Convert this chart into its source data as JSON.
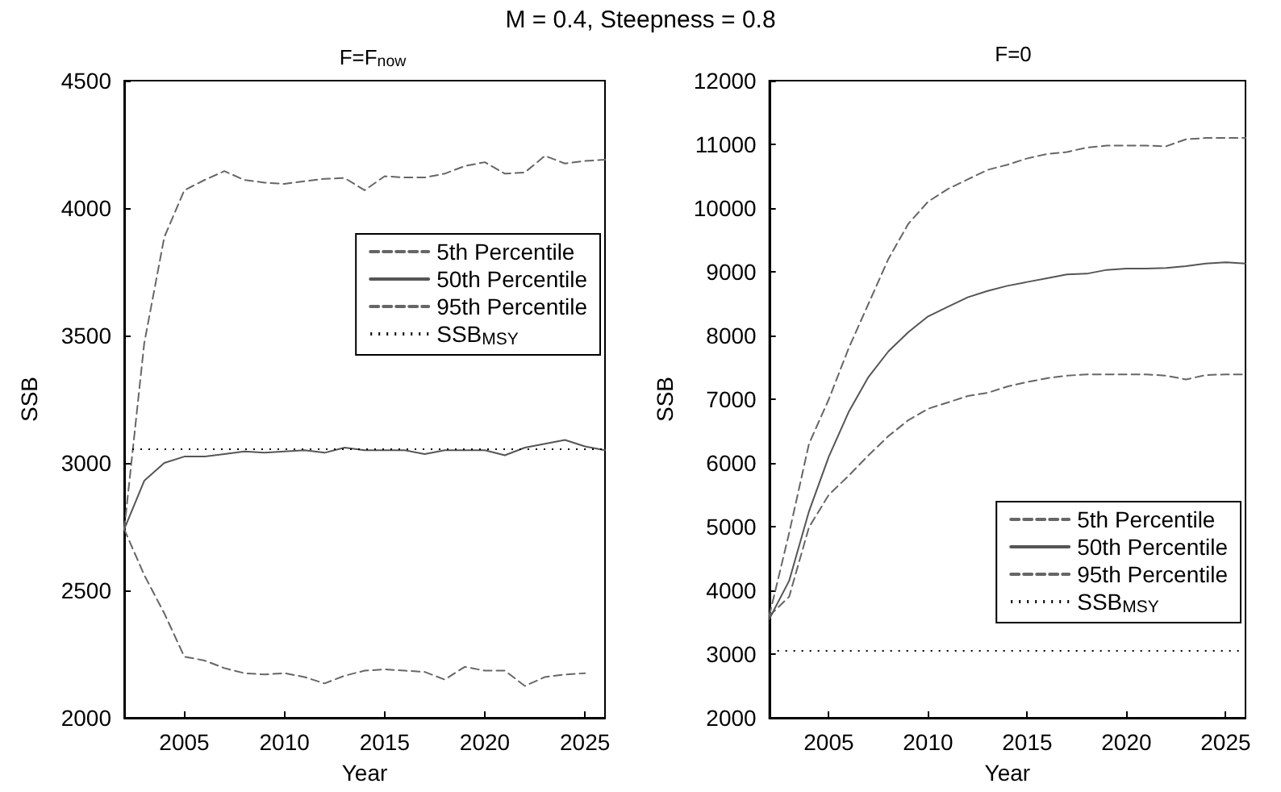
{
  "chart_data": [
    {
      "type": "line",
      "title": "F=F$_{now}$",
      "annotations": [
        "M = 0.4, Steepness = 0.8"
      ],
      "xlabel": "Year",
      "ylabel": "SSB",
      "x": [
        2002,
        2003,
        2004,
        2005,
        2006,
        2007,
        2008,
        2009,
        2010,
        2011,
        2012,
        2013,
        2014,
        2015,
        2016,
        2017,
        2018,
        2019,
        2020,
        2021,
        2022,
        2023,
        2024,
        2025,
        2026
      ],
      "series": [
        {
          "name": "5th Percentile",
          "color": "#666666",
          "line_style": "dashed",
          "values": [
            2740,
            2560,
            2410,
            2240,
            2225,
            2195,
            2175,
            2170,
            2175,
            2160,
            2135,
            2165,
            2185,
            2190,
            2185,
            2180,
            2150,
            2200,
            2185,
            2185,
            2125,
            2160,
            2170,
            2175,
            null
          ]
        },
        {
          "name": "50th Percentile",
          "color": "#555555",
          "line_style": "solid",
          "values": [
            2740,
            2930,
            3000,
            3025,
            3025,
            3035,
            3045,
            3040,
            3045,
            3050,
            3040,
            3060,
            3050,
            3050,
            3050,
            3035,
            3050,
            3050,
            3050,
            3030,
            3060,
            3075,
            3090,
            3065,
            3050
          ]
        },
        {
          "name": "95th Percentile",
          "color": "#666666",
          "line_style": "dashed",
          "values": [
            2740,
            3470,
            3886,
            4070,
            4110,
            4145,
            4110,
            4100,
            4095,
            4105,
            4115,
            4118,
            4070,
            4125,
            4120,
            4120,
            4135,
            4165,
            4180,
            4135,
            4140,
            4205,
            4175,
            4185,
            4190
          ]
        }
      ],
      "ref_lines": [
        {
          "axis": "y",
          "value": 3055,
          "label": "SSB$_{MSY}$",
          "color": "#000000",
          "line_style": "dotted"
        }
      ],
      "xlim": [
        2002,
        2026
      ],
      "xticks": [
        2005,
        2010,
        2015,
        2020,
        2025
      ],
      "ylim": [
        2000,
        4500
      ],
      "yticks": [
        2000,
        2500,
        3000,
        3500,
        4000,
        4500
      ],
      "grid": false,
      "legend": "right"
    },
    {
      "type": "line",
      "title": "F=0",
      "xlabel": "Year",
      "ylabel": "SSB",
      "x": [
        2002,
        2003,
        2004,
        2005,
        2006,
        2007,
        2008,
        2009,
        2010,
        2011,
        2012,
        2013,
        2014,
        2015,
        2016,
        2017,
        2018,
        2019,
        2020,
        2021,
        2022,
        2023,
        2024,
        2025,
        2026
      ],
      "series": [
        {
          "name": "5th Percentile",
          "color": "#666666",
          "line_style": "dashed",
          "values": [
            3600,
            3900,
            4990,
            5500,
            5800,
            6120,
            6420,
            6670,
            6850,
            6950,
            7050,
            7100,
            7200,
            7270,
            7330,
            7370,
            7390,
            7390,
            7390,
            7390,
            7370,
            7310,
            7380,
            7390,
            7390
          ]
        },
        {
          "name": "50th Percentile",
          "color": "#555555",
          "line_style": "solid",
          "values": [
            3550,
            4150,
            5240,
            6100,
            6800,
            7350,
            7750,
            8050,
            8300,
            8450,
            8600,
            8700,
            8780,
            8840,
            8900,
            8960,
            8970,
            9030,
            9050,
            9050,
            9060,
            9090,
            9130,
            9150,
            9130
          ]
        },
        {
          "name": "95th Percentile",
          "color": "#666666",
          "line_style": "dashed",
          "values": [
            3600,
            4900,
            6300,
            7000,
            7800,
            8500,
            9200,
            9750,
            10100,
            10300,
            10450,
            10600,
            10680,
            10780,
            10850,
            10880,
            10950,
            10980,
            10980,
            10980,
            10970,
            11080,
            11100,
            11100,
            11100
          ]
        }
      ],
      "ref_lines": [
        {
          "axis": "y",
          "value": 3055,
          "label": "SSB$_{MSY}$",
          "color": "#000000",
          "line_style": "dotted"
        }
      ],
      "xlim": [
        2002,
        2026
      ],
      "xticks": [
        2005,
        2010,
        2015,
        2020,
        2025
      ],
      "ylim": [
        2000,
        12000
      ],
      "yticks": [
        2000,
        3000,
        4000,
        5000,
        6000,
        7000,
        8000,
        9000,
        10000,
        11000,
        12000
      ],
      "grid": false,
      "legend": "bottom right"
    }
  ]
}
